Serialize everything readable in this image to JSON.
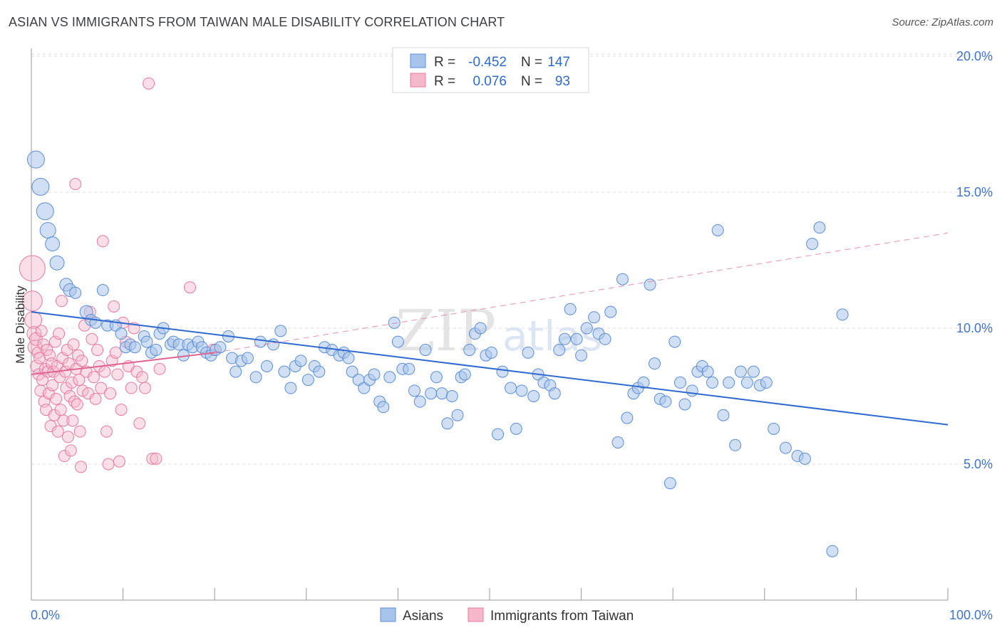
{
  "title": "ASIAN VS IMMIGRANTS FROM TAIWAN MALE DISABILITY CORRELATION CHART",
  "source": "Source: ZipAtlas.com",
  "watermark": {
    "zip": "ZIP",
    "atlas": "atlas"
  },
  "colors": {
    "asian_fill": "#a9c4ea",
    "asian_stroke": "#5b8ed6",
    "asian_line": "#2f6ad0",
    "taiwan_fill": "#f5b8cb",
    "taiwan_stroke": "#e8799e",
    "taiwan_line": "#e0628f",
    "grid": "#dddddd",
    "axis": "#999999",
    "tick_label": "#3f74c9"
  },
  "legend": {
    "r_label": "R =",
    "n_label": "N =",
    "asian": {
      "r": "-0.452",
      "n": "147"
    },
    "taiwan": {
      "r": "0.076",
      "n": "93"
    }
  },
  "bottom_legend": {
    "asian": "Asians",
    "taiwan": "Immigrants from Taiwan"
  },
  "chart_data": {
    "type": "scatter",
    "title": "ASIAN VS IMMIGRANTS FROM TAIWAN MALE DISABILITY CORRELATION CHART",
    "xlabel": "",
    "ylabel": "Male Disability",
    "xlim": [
      0,
      100
    ],
    "ylim": [
      0,
      21
    ],
    "x_tick_labels": [
      "0.0%",
      "100.0%"
    ],
    "y_ticks": [
      5,
      10,
      15,
      20
    ],
    "y_tick_labels": [
      "5.0%",
      "10.0%",
      "15.0%",
      "20.0%"
    ],
    "grid": true,
    "legend_position": "top-center",
    "series": [
      {
        "name": "Asians",
        "r": -0.452,
        "n": 147,
        "trend": {
          "x": [
            0,
            100
          ],
          "y": [
            10.6,
            6.45
          ],
          "style": "solid"
        },
        "points": [
          [
            0.5,
            16.2,
            12
          ],
          [
            1,
            15.2,
            12
          ],
          [
            1.5,
            14.3,
            12
          ],
          [
            1.8,
            13.6,
            11
          ],
          [
            2.3,
            13.1,
            10
          ],
          [
            2.8,
            12.4,
            10
          ],
          [
            3.8,
            11.6,
            9
          ],
          [
            4.2,
            11.4,
            9
          ],
          [
            4.8,
            11.3,
            8
          ],
          [
            6,
            10.6,
            9
          ],
          [
            6.5,
            10.3,
            8
          ],
          [
            7,
            10.2,
            8
          ],
          [
            7.8,
            11.4,
            8
          ],
          [
            8.3,
            10.1,
            8
          ],
          [
            9.2,
            10.1,
            8
          ],
          [
            9.8,
            9.8,
            8
          ],
          [
            10.3,
            9.3,
            8
          ],
          [
            10.8,
            9.4,
            8
          ],
          [
            11.3,
            9.3,
            8
          ],
          [
            12.3,
            9.7,
            8
          ],
          [
            12.6,
            9.5,
            8
          ],
          [
            13.1,
            9.1,
            8
          ],
          [
            13.6,
            9.2,
            8
          ],
          [
            14,
            9.8,
            8
          ],
          [
            14.4,
            10,
            8
          ],
          [
            15.2,
            9.4,
            8
          ],
          [
            15.5,
            9.5,
            8
          ],
          [
            16.1,
            9.4,
            8
          ],
          [
            16.6,
            9.0,
            8
          ],
          [
            17.1,
            9.4,
            8
          ],
          [
            17.6,
            9.3,
            8
          ],
          [
            18.2,
            9.5,
            8
          ],
          [
            18.6,
            9.3,
            8
          ],
          [
            19.1,
            9.1,
            8
          ],
          [
            19.6,
            9.0,
            8
          ],
          [
            20.1,
            9.2,
            8
          ],
          [
            20.6,
            9.3,
            8
          ],
          [
            21.5,
            9.7,
            8
          ],
          [
            21.9,
            8.9,
            8
          ],
          [
            22.3,
            8.4,
            8
          ],
          [
            22.9,
            8.8,
            8
          ],
          [
            23.6,
            8.9,
            8
          ],
          [
            24.5,
            8.2,
            8
          ],
          [
            25,
            9.5,
            8
          ],
          [
            25.7,
            8.6,
            8
          ],
          [
            26.4,
            9.4,
            8
          ],
          [
            27.2,
            9.9,
            8
          ],
          [
            27.6,
            8.4,
            8
          ],
          [
            28.3,
            7.8,
            8
          ],
          [
            28.8,
            8.6,
            8
          ],
          [
            29.4,
            8.8,
            8
          ],
          [
            30.2,
            8.1,
            8
          ],
          [
            30.9,
            8.6,
            8
          ],
          [
            31.4,
            8.4,
            8
          ],
          [
            32,
            9.3,
            8
          ],
          [
            32.8,
            9.2,
            8
          ],
          [
            33.6,
            9.0,
            8
          ],
          [
            34.1,
            9.1,
            8
          ],
          [
            34.6,
            8.9,
            8
          ],
          [
            35,
            8.4,
            8
          ],
          [
            35.7,
            8.1,
            8
          ],
          [
            36.3,
            7.8,
            8
          ],
          [
            36.9,
            8.1,
            8
          ],
          [
            37.4,
            8.3,
            8
          ],
          [
            38,
            7.3,
            8
          ],
          [
            38.4,
            7.1,
            8
          ],
          [
            39.1,
            8.2,
            8
          ],
          [
            39.6,
            10.2,
            8
          ],
          [
            40,
            9.5,
            8
          ],
          [
            40.5,
            8.5,
            8
          ],
          [
            41.2,
            8.5,
            8
          ],
          [
            41.8,
            7.7,
            8
          ],
          [
            42.4,
            7.3,
            8
          ],
          [
            43,
            9.2,
            8
          ],
          [
            43.6,
            7.6,
            8
          ],
          [
            44.2,
            8.2,
            8
          ],
          [
            44.8,
            7.6,
            8
          ],
          [
            45.4,
            6.5,
            8
          ],
          [
            45.9,
            7.5,
            8
          ],
          [
            46.5,
            6.8,
            8
          ],
          [
            46.9,
            8.2,
            8
          ],
          [
            47.3,
            8.3,
            8
          ],
          [
            47.8,
            9.2,
            8
          ],
          [
            48.4,
            9.8,
            8
          ],
          [
            49,
            10,
            8
          ],
          [
            49.6,
            9.0,
            8
          ],
          [
            50.2,
            9.1,
            8
          ],
          [
            50.9,
            6.1,
            8
          ],
          [
            51.4,
            8.4,
            8
          ],
          [
            52.3,
            7.8,
            8
          ],
          [
            52.9,
            6.3,
            8
          ],
          [
            53.5,
            7.7,
            8
          ],
          [
            54.2,
            9.1,
            8
          ],
          [
            54.8,
            7.5,
            8
          ],
          [
            55.3,
            8.3,
            8
          ],
          [
            55.9,
            8.0,
            8
          ],
          [
            56.6,
            7.9,
            8
          ],
          [
            57.1,
            7.6,
            8
          ],
          [
            57.6,
            9.2,
            8
          ],
          [
            58.2,
            9.6,
            8
          ],
          [
            58.8,
            10.7,
            8
          ],
          [
            59.5,
            9.6,
            8
          ],
          [
            60,
            9.0,
            8
          ],
          [
            60.6,
            10.0,
            8
          ],
          [
            61.4,
            10.4,
            8
          ],
          [
            61.9,
            9.8,
            8
          ],
          [
            62.6,
            9.6,
            8
          ],
          [
            63.2,
            10.6,
            8
          ],
          [
            64,
            5.8,
            8
          ],
          [
            64.5,
            11.8,
            8
          ],
          [
            65,
            6.7,
            8
          ],
          [
            65.7,
            7.6,
            8
          ],
          [
            66.2,
            7.8,
            8
          ],
          [
            66.8,
            8.0,
            8
          ],
          [
            67.5,
            11.6,
            8
          ],
          [
            68,
            8.7,
            8
          ],
          [
            68.6,
            7.4,
            8
          ],
          [
            69.2,
            7.3,
            8
          ],
          [
            69.7,
            4.3,
            8
          ],
          [
            70.2,
            9.5,
            8
          ],
          [
            70.8,
            8.0,
            8
          ],
          [
            71.3,
            7.2,
            8
          ],
          [
            72.1,
            7.7,
            8
          ],
          [
            72.7,
            8.4,
            8
          ],
          [
            73.2,
            8.6,
            8
          ],
          [
            73.8,
            8.4,
            8
          ],
          [
            74.3,
            8.0,
            8
          ],
          [
            74.9,
            13.6,
            8
          ],
          [
            75.5,
            6.8,
            8
          ],
          [
            76.1,
            8.0,
            8
          ],
          [
            76.8,
            5.7,
            8
          ],
          [
            77.4,
            8.4,
            8
          ],
          [
            78.1,
            8.0,
            8
          ],
          [
            78.8,
            8.4,
            8
          ],
          [
            79.5,
            7.9,
            8
          ],
          [
            80.2,
            8.0,
            8
          ],
          [
            81,
            6.3,
            8
          ],
          [
            82.3,
            5.6,
            8
          ],
          [
            83.6,
            5.3,
            8
          ],
          [
            84.4,
            5.2,
            8
          ],
          [
            85.2,
            13.1,
            8
          ],
          [
            86,
            13.7,
            8
          ],
          [
            87.4,
            1.8,
            8
          ],
          [
            88.5,
            10.5,
            8
          ]
        ]
      },
      {
        "name": "Immigrants from Taiwan",
        "r": 0.076,
        "n": 93,
        "trend": {
          "x": [
            0,
            20,
            100
          ],
          "y": [
            8.3,
            9.1,
            13.5
          ],
          "style": "solid-then-dashed"
        },
        "points": [
          [
            0.1,
            12.2,
            18
          ],
          [
            0.1,
            11.0,
            14
          ],
          [
            0.2,
            10.3,
            12
          ],
          [
            0.3,
            9.8,
            10
          ],
          [
            0.4,
            9.3,
            10
          ],
          [
            0.5,
            9.6,
            9
          ],
          [
            0.6,
            8.6,
            9
          ],
          [
            0.7,
            9.1,
            8
          ],
          [
            0.8,
            8.3,
            8
          ],
          [
            0.9,
            8.9,
            8
          ],
          [
            1.0,
            7.7,
            8
          ],
          [
            1.1,
            9.9,
            8
          ],
          [
            1.2,
            8.1,
            8
          ],
          [
            1.3,
            9.4,
            8
          ],
          [
            1.4,
            7.3,
            8
          ],
          [
            1.5,
            8.5,
            8
          ],
          [
            1.6,
            7.0,
            8
          ],
          [
            1.7,
            9.2,
            8
          ],
          [
            1.8,
            8.4,
            8
          ],
          [
            1.9,
            7.6,
            8
          ],
          [
            2.0,
            9.0,
            8
          ],
          [
            2.1,
            6.4,
            8
          ],
          [
            2.2,
            8.7,
            8
          ],
          [
            2.3,
            7.9,
            8
          ],
          [
            2.4,
            8.4,
            8
          ],
          [
            2.5,
            6.8,
            8
          ],
          [
            2.6,
            9.5,
            8
          ],
          [
            2.7,
            7.4,
            8
          ],
          [
            2.8,
            8.6,
            8
          ],
          [
            2.9,
            6.2,
            8
          ],
          [
            3.0,
            9.8,
            8
          ],
          [
            3.1,
            8.2,
            8
          ],
          [
            3.2,
            7.0,
            8
          ],
          [
            3.3,
            11.0,
            8
          ],
          [
            3.4,
            8.9,
            8
          ],
          [
            3.5,
            6.6,
            8
          ],
          [
            3.6,
            5.3,
            8
          ],
          [
            3.7,
            8.4,
            8
          ],
          [
            3.8,
            7.8,
            8
          ],
          [
            3.9,
            9.2,
            8
          ],
          [
            4.0,
            6.0,
            8
          ],
          [
            4.1,
            8.7,
            8
          ],
          [
            4.2,
            7.5,
            8
          ],
          [
            4.3,
            5.5,
            8
          ],
          [
            4.4,
            8.0,
            8
          ],
          [
            4.5,
            6.6,
            8
          ],
          [
            4.6,
            9.4,
            8
          ],
          [
            4.7,
            7.3,
            8
          ],
          [
            4.8,
            15.3,
            8
          ],
          [
            4.9,
            8.5,
            8
          ],
          [
            5.0,
            7.2,
            8
          ],
          [
            5.1,
            9.0,
            8
          ],
          [
            5.2,
            8.1,
            8
          ],
          [
            5.3,
            6.2,
            8
          ],
          [
            5.4,
            4.9,
            8
          ],
          [
            5.5,
            8.8,
            8
          ],
          [
            5.6,
            7.7,
            8
          ],
          [
            5.8,
            10.1,
            8
          ],
          [
            6.0,
            8.4,
            8
          ],
          [
            6.2,
            7.6,
            8
          ],
          [
            6.4,
            10.6,
            8
          ],
          [
            6.6,
            9.6,
            8
          ],
          [
            6.8,
            8.2,
            8
          ],
          [
            7.0,
            7.4,
            8
          ],
          [
            7.2,
            9.2,
            8
          ],
          [
            7.4,
            8.6,
            8
          ],
          [
            7.6,
            7.8,
            8
          ],
          [
            7.8,
            13.2,
            8
          ],
          [
            8.0,
            8.4,
            8
          ],
          [
            8.2,
            6.2,
            8
          ],
          [
            8.4,
            5.0,
            8
          ],
          [
            8.6,
            7.6,
            8
          ],
          [
            8.8,
            8.8,
            8
          ],
          [
            9.0,
            10.8,
            8
          ],
          [
            9.2,
            9.1,
            8
          ],
          [
            9.4,
            8.3,
            8
          ],
          [
            9.6,
            5.1,
            8
          ],
          [
            9.8,
            7.0,
            8
          ],
          [
            10.0,
            10.2,
            8
          ],
          [
            10.3,
            9.5,
            8
          ],
          [
            10.6,
            8.6,
            8
          ],
          [
            10.9,
            7.8,
            8
          ],
          [
            11.2,
            10.0,
            8
          ],
          [
            11.5,
            8.4,
            8
          ],
          [
            11.8,
            6.5,
            8
          ],
          [
            12.1,
            8.2,
            8
          ],
          [
            12.4,
            7.8,
            8
          ],
          [
            12.8,
            19.0,
            8
          ],
          [
            13.2,
            5.2,
            8
          ],
          [
            13.6,
            5.2,
            8
          ],
          [
            14.0,
            8.5,
            8
          ],
          [
            17.3,
            11.5,
            8
          ],
          [
            19.8,
            9.2,
            8
          ]
        ]
      }
    ]
  }
}
